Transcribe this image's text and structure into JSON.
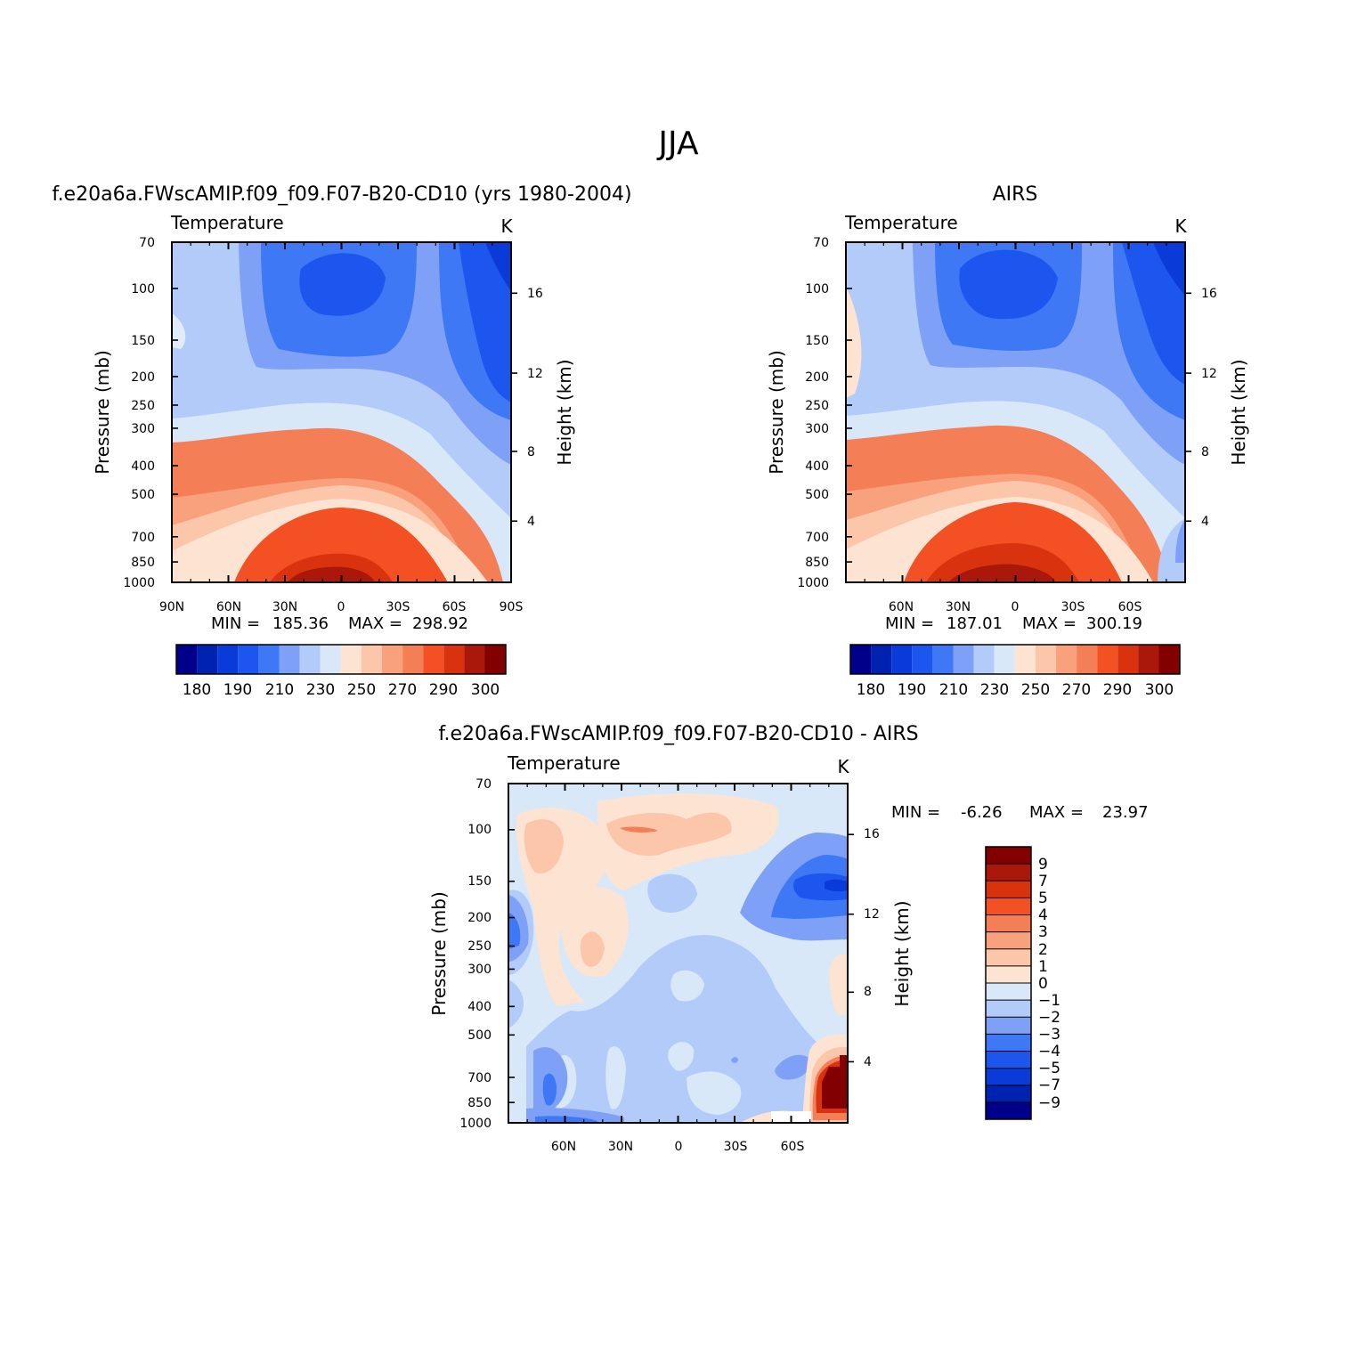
{
  "figure": {
    "title": "JJA",
    "colors": {
      "cold": [
        "#00008b",
        "#0022b0",
        "#0a3ad8",
        "#1c56ef",
        "#3e78f5",
        "#7ea0f7",
        "#b3cbf8",
        "#d8e8f8"
      ],
      "warm": [
        "#fde3d2",
        "#fbc6aa",
        "#f9a17c",
        "#f47f57",
        "#f35023",
        "#d8320e",
        "#a9180a",
        "#830000"
      ],
      "zero_band": "#d8e8f8"
    }
  },
  "chart_data": [
    {
      "type": "contour",
      "id": "model",
      "title": "f.e20a6a.FWscAMIP.f09_f09.F07-B20-CD10 (yrs 1980-2004)",
      "variable": "Temperature",
      "units": "K",
      "xlabel": "",
      "ylabel": "Pressure (mb)",
      "ylabel_right": "Height (km)",
      "x_tick_labels": [
        "90N",
        "60N",
        "30N",
        "0",
        "30S",
        "60S",
        "90S"
      ],
      "y_tick_labels": [
        "70",
        "100",
        "150",
        "200",
        "250",
        "300",
        "400",
        "500",
        "700",
        "850",
        "1000"
      ],
      "y2_tick_labels": [
        "16",
        "12",
        "8",
        "4"
      ],
      "min_label": "MIN =",
      "min": "185.36",
      "max_label": "MAX =",
      "max": "298.92",
      "colorbar_labels": [
        "180",
        "190",
        "210",
        "230",
        "250",
        "270",
        "290",
        "300"
      ]
    },
    {
      "type": "contour",
      "id": "obs",
      "title": "AIRS",
      "variable": "Temperature",
      "units": "K",
      "xlabel": "",
      "ylabel": "Pressure (mb)",
      "ylabel_right": "Height (km)",
      "x_tick_labels": [
        "60N",
        "30N",
        "0",
        "30S",
        "60S"
      ],
      "y_tick_labels": [
        "70",
        "100",
        "150",
        "200",
        "250",
        "300",
        "400",
        "500",
        "700",
        "850",
        "1000"
      ],
      "y2_tick_labels": [
        "16",
        "12",
        "8",
        "4"
      ],
      "min_label": "MIN =",
      "min": "187.01",
      "max_label": "MAX =",
      "max": "300.19",
      "colorbar_labels": [
        "180",
        "190",
        "210",
        "230",
        "250",
        "270",
        "290",
        "300"
      ]
    },
    {
      "type": "contour",
      "id": "diff",
      "title": "f.e20a6a.FWscAMIP.f09_f09.F07-B20-CD10 - AIRS",
      "variable": "Temperature",
      "units": "K",
      "xlabel": "",
      "ylabel": "Pressure (mb)",
      "ylabel_right": "Height (km)",
      "x_tick_labels": [
        "60N",
        "30N",
        "0",
        "30S",
        "60S"
      ],
      "y_tick_labels": [
        "70",
        "100",
        "150",
        "200",
        "250",
        "300",
        "400",
        "500",
        "700",
        "850",
        "1000"
      ],
      "y2_tick_labels": [
        "16",
        "12",
        "8",
        "4"
      ],
      "min_label": "MIN =",
      "min": "-6.26",
      "max_label": "MAX =",
      "max": "23.97",
      "colorbar_labels": [
        "9",
        "7",
        "5",
        "4",
        "3",
        "2",
        "1",
        "0",
        "−1",
        "−2",
        "−3",
        "−4",
        "−5",
        "−7",
        "−9"
      ]
    }
  ]
}
